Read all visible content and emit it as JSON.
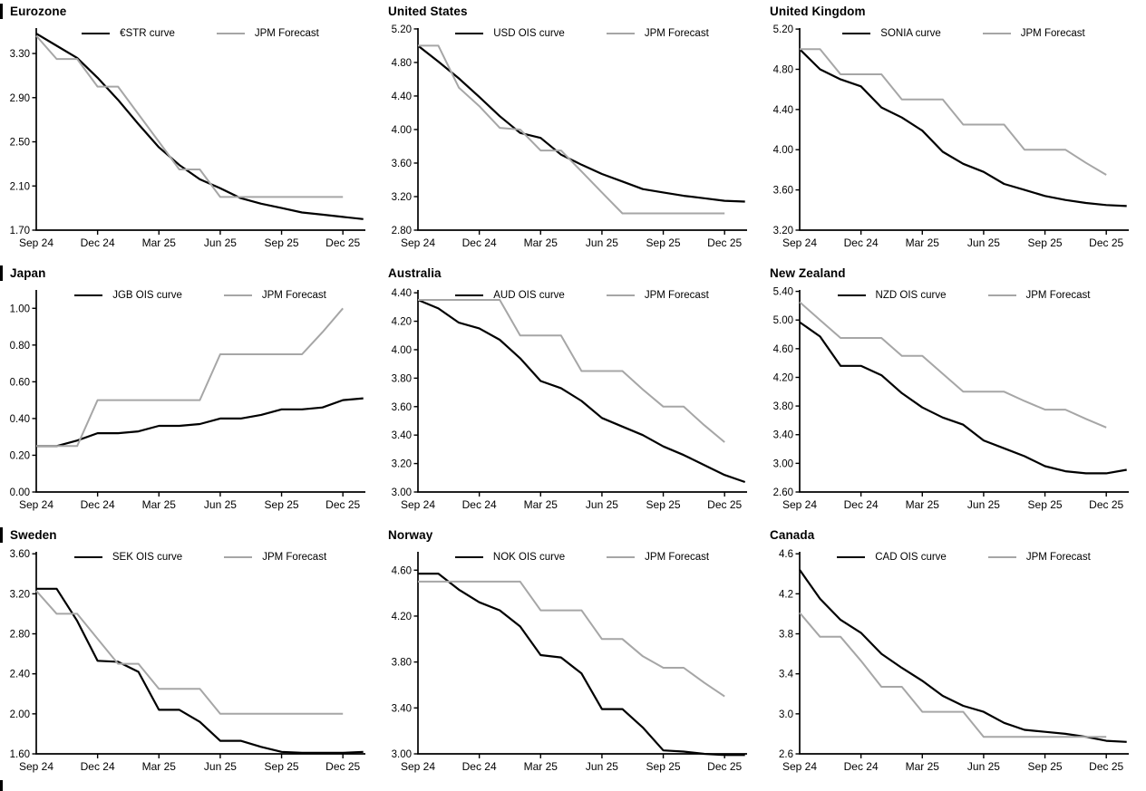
{
  "colors": {
    "series_black": "#000000",
    "series_gray": "#a6a6a6",
    "axis": "#000000",
    "background": "#ffffff"
  },
  "x_axis": {
    "labels": [
      "Sep 24",
      "Dec 24",
      "Mar 25",
      "Jun 25",
      "Sep 25",
      "Dec 25"
    ],
    "label_positions": [
      0,
      3,
      6,
      9,
      12,
      15
    ],
    "domain": [
      0,
      16.1
    ],
    "point_interval": "monthly"
  },
  "chart_data": [
    {
      "type": "line",
      "title": "Eurozone",
      "edge_bar": true,
      "ylim": [
        1.7,
        3.53
      ],
      "yticks": [
        "1.70",
        "2.10",
        "2.50",
        "2.90",
        "3.30"
      ],
      "legend_position": "top-center",
      "grid": false,
      "series": [
        {
          "name": "€STR curve",
          "color_key": "series_black",
          "values": [
            3.48,
            3.37,
            3.26,
            3.08,
            2.88,
            2.66,
            2.45,
            2.29,
            2.16,
            2.08,
            1.99,
            1.94,
            1.9,
            1.86,
            1.84,
            1.82,
            1.8
          ]
        },
        {
          "name": "JPM Forecast",
          "color_key": "series_gray",
          "values": [
            3.46,
            3.25,
            3.25,
            3.0,
            3.0,
            2.75,
            2.5,
            2.25,
            2.25,
            2.0,
            2.0,
            2.0,
            2.0,
            2.0,
            2.0,
            2.0
          ]
        }
      ]
    },
    {
      "type": "line",
      "title": "United States",
      "edge_bar": false,
      "ylim": [
        2.8,
        5.21
      ],
      "yticks": [
        "2.80",
        "3.20",
        "3.60",
        "4.00",
        "4.40",
        "4.80",
        "5.20"
      ],
      "legend_position": "top-center",
      "grid": false,
      "series": [
        {
          "name": "USD OIS curve",
          "color_key": "series_black",
          "values": [
            5.0,
            4.81,
            4.61,
            4.39,
            4.16,
            3.96,
            3.9,
            3.7,
            3.58,
            3.47,
            3.38,
            3.29,
            3.25,
            3.21,
            3.18,
            3.15,
            3.14
          ]
        },
        {
          "name": "JPM Forecast",
          "color_key": "series_gray",
          "values": [
            5.0,
            5.0,
            4.5,
            4.28,
            4.02,
            4.0,
            3.75,
            3.75,
            3.5,
            3.25,
            3.0,
            3.0,
            3.0,
            3.0,
            3.0,
            3.0
          ]
        }
      ]
    },
    {
      "type": "line",
      "title": "United Kingdom",
      "edge_bar": false,
      "ylim": [
        3.2,
        5.21
      ],
      "yticks": [
        "3.20",
        "3.60",
        "4.00",
        "4.40",
        "4.80",
        "5.20"
      ],
      "legend_position": "top-center",
      "grid": false,
      "series": [
        {
          "name": "SONIA curve",
          "color_key": "series_black",
          "values": [
            5.0,
            4.8,
            4.7,
            4.63,
            4.42,
            4.32,
            4.19,
            3.98,
            3.86,
            3.78,
            3.66,
            3.6,
            3.54,
            3.5,
            3.47,
            3.45,
            3.44
          ]
        },
        {
          "name": "JPM Forecast",
          "color_key": "series_gray",
          "values": [
            5.0,
            5.0,
            4.75,
            4.75,
            4.75,
            4.5,
            4.5,
            4.5,
            4.25,
            4.25,
            4.25,
            4.0,
            4.0,
            4.0,
            3.87,
            3.75
          ]
        }
      ]
    },
    {
      "type": "line",
      "title": "Japan",
      "edge_bar": true,
      "ylim": [
        0.0,
        1.1
      ],
      "yticks": [
        "0.00",
        "0.20",
        "0.40",
        "0.60",
        "0.80",
        "1.00"
      ],
      "legend_position": "top-center",
      "grid": false,
      "series": [
        {
          "name": "JGB OIS curve",
          "color_key": "series_black",
          "values": [
            0.25,
            0.25,
            0.28,
            0.32,
            0.32,
            0.33,
            0.36,
            0.36,
            0.37,
            0.4,
            0.4,
            0.42,
            0.45,
            0.45,
            0.46,
            0.5,
            0.51
          ]
        },
        {
          "name": "JPM Forecast",
          "color_key": "series_gray",
          "values": [
            0.25,
            0.25,
            0.25,
            0.5,
            0.5,
            0.5,
            0.5,
            0.5,
            0.5,
            0.75,
            0.75,
            0.75,
            0.75,
            0.75,
            0.87,
            1.0
          ]
        }
      ]
    },
    {
      "type": "line",
      "title": "Australia",
      "edge_bar": false,
      "ylim": [
        3.0,
        4.42
      ],
      "yticks": [
        "3.00",
        "3.20",
        "3.40",
        "3.60",
        "3.80",
        "4.00",
        "4.20",
        "4.40"
      ],
      "legend_position": "top-center",
      "grid": false,
      "series": [
        {
          "name": "AUD OIS curve",
          "color_key": "series_black",
          "values": [
            4.35,
            4.29,
            4.19,
            4.15,
            4.07,
            3.94,
            3.78,
            3.73,
            3.64,
            3.52,
            3.46,
            3.4,
            3.32,
            3.26,
            3.19,
            3.12,
            3.07
          ]
        },
        {
          "name": "JPM Forecast",
          "color_key": "series_gray",
          "values": [
            4.35,
            4.35,
            4.35,
            4.35,
            4.35,
            4.1,
            4.1,
            4.1,
            3.85,
            3.85,
            3.85,
            3.72,
            3.6,
            3.6,
            3.47,
            3.35
          ]
        }
      ]
    },
    {
      "type": "line",
      "title": "New Zealand",
      "edge_bar": false,
      "ylim": [
        2.6,
        5.42
      ],
      "yticks": [
        "2.60",
        "3.00",
        "3.40",
        "3.80",
        "4.20",
        "4.60",
        "5.00",
        "5.40"
      ],
      "legend_position": "top-center",
      "grid": false,
      "series": [
        {
          "name": "NZD OIS curve",
          "color_key": "series_black",
          "values": [
            4.97,
            4.77,
            4.36,
            4.36,
            4.23,
            3.98,
            3.78,
            3.64,
            3.54,
            3.32,
            3.21,
            3.1,
            2.96,
            2.89,
            2.86,
            2.86,
            2.91
          ]
        },
        {
          "name": "JPM Forecast",
          "color_key": "series_gray",
          "values": [
            5.25,
            5.0,
            4.75,
            4.75,
            4.75,
            4.5,
            4.5,
            4.25,
            4.0,
            4.0,
            4.0,
            3.87,
            3.75,
            3.75,
            3.62,
            3.5
          ]
        }
      ]
    },
    {
      "type": "line",
      "title": "Sweden",
      "edge_bar": true,
      "ylim": [
        1.6,
        3.62
      ],
      "yticks": [
        "1.60",
        "2.00",
        "2.40",
        "2.80",
        "3.20",
        "3.60"
      ],
      "legend_position": "top-center",
      "grid": false,
      "series": [
        {
          "name": "SEK OIS curve",
          "color_key": "series_black",
          "values": [
            3.25,
            3.25,
            2.93,
            2.53,
            2.52,
            2.42,
            2.04,
            2.04,
            1.92,
            1.73,
            1.73,
            1.67,
            1.62,
            1.61,
            1.61,
            1.61,
            1.62
          ]
        },
        {
          "name": "JPM Forecast",
          "color_key": "series_gray",
          "values": [
            3.23,
            3.0,
            3.0,
            2.75,
            2.5,
            2.5,
            2.25,
            2.25,
            2.25,
            2.0,
            2.0,
            2.0,
            2.0,
            2.0,
            2.0,
            2.0
          ]
        }
      ]
    },
    {
      "type": "line",
      "title": "Norway",
      "edge_bar": false,
      "ylim": [
        3.0,
        4.76
      ],
      "yticks": [
        "3.00",
        "3.40",
        "3.80",
        "4.20",
        "4.60"
      ],
      "legend_position": "top-center",
      "grid": false,
      "series": [
        {
          "name": "NOK OIS curve",
          "color_key": "series_black",
          "values": [
            4.57,
            4.57,
            4.43,
            4.32,
            4.25,
            4.11,
            3.86,
            3.84,
            3.7,
            3.39,
            3.39,
            3.23,
            3.03,
            3.02,
            3.0,
            2.99,
            2.99
          ]
        },
        {
          "name": "JPM Forecast",
          "color_key": "series_gray",
          "values": [
            4.5,
            4.5,
            4.5,
            4.5,
            4.5,
            4.5,
            4.25,
            4.25,
            4.25,
            4.0,
            4.0,
            3.85,
            3.75,
            3.75,
            3.62,
            3.5
          ]
        }
      ]
    },
    {
      "type": "line",
      "title": "Canada",
      "edge_bar": false,
      "ylim": [
        2.6,
        4.62
      ],
      "yticks": [
        "2.6",
        "3.0",
        "3.4",
        "3.8",
        "4.2",
        "4.6"
      ],
      "legend_position": "top-center",
      "grid": false,
      "series": [
        {
          "name": "CAD OIS curve",
          "color_key": "series_black",
          "values": [
            4.44,
            4.15,
            3.94,
            3.81,
            3.6,
            3.46,
            3.33,
            3.18,
            3.08,
            3.02,
            2.91,
            2.84,
            2.82,
            2.8,
            2.77,
            2.73,
            2.72
          ]
        },
        {
          "name": "JPM Forecast",
          "color_key": "series_gray",
          "values": [
            4.01,
            3.77,
            3.77,
            3.53,
            3.27,
            3.27,
            3.02,
            3.02,
            3.02,
            2.77,
            2.77,
            2.77,
            2.77,
            2.77,
            2.77,
            2.77
          ]
        }
      ]
    }
  ]
}
